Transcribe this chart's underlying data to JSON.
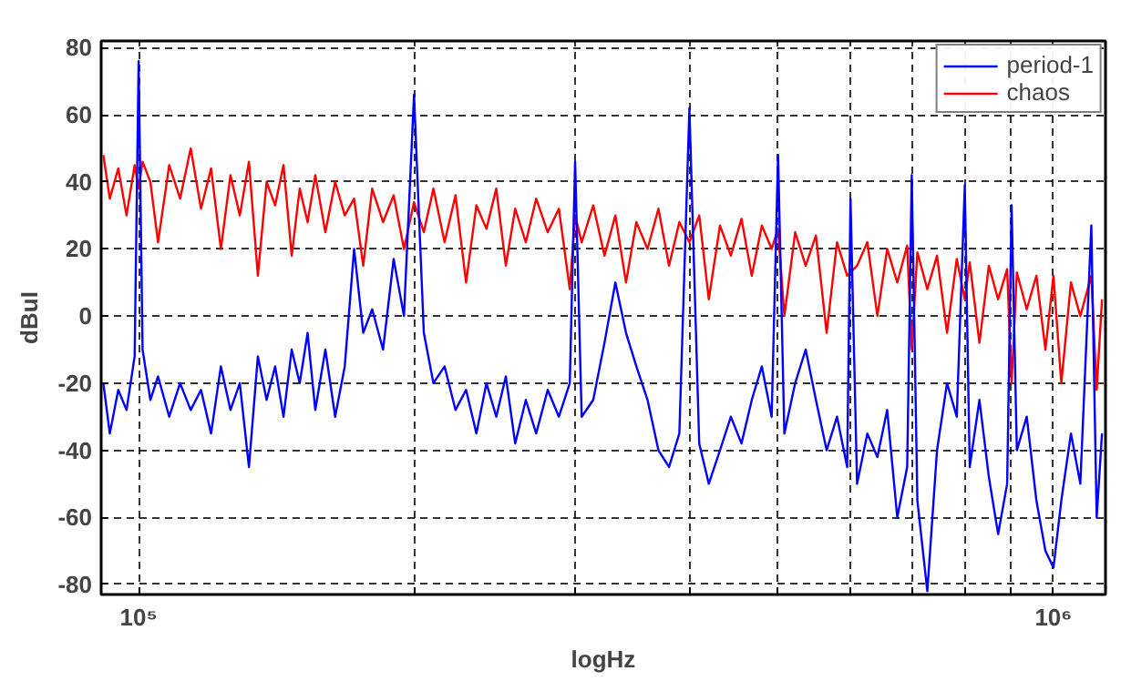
{
  "chart_data": {
    "type": "line",
    "xlabel": "logHz",
    "ylabel": "dBuI",
    "log": "x",
    "grid": true,
    "legend": "top right",
    "line_style": "solid",
    "marker": "none",
    "xlim": [
      91000,
      1140000
    ],
    "ylim": [
      -83,
      82
    ],
    "xticks": [
      {
        "value": 100000,
        "label": "10⁵"
      },
      {
        "value": 200000,
        "label": null
      },
      {
        "value": 300000,
        "label": null
      },
      {
        "value": 400000,
        "label": null
      },
      {
        "value": 500000,
        "label": null
      },
      {
        "value": 600000,
        "label": null
      },
      {
        "value": 700000,
        "label": null
      },
      {
        "value": 800000,
        "label": null
      },
      {
        "value": 900000,
        "label": null
      },
      {
        "value": 1000000,
        "label": "10⁶"
      }
    ],
    "yticks": [
      -80,
      -60,
      -40,
      -20,
      0,
      20,
      40,
      60,
      80
    ],
    "x": [
      91500,
      93000,
      95000,
      97000,
      99000,
      100000,
      101000,
      103000,
      105000,
      108000,
      111000,
      114000,
      117000,
      120000,
      123000,
      126000,
      129000,
      132000,
      135000,
      138000,
      141000,
      144000,
      147000,
      150000,
      153000,
      156000,
      160000,
      164000,
      168000,
      172000,
      176000,
      180000,
      185000,
      190000,
      195000,
      200000,
      205000,
      210000,
      216000,
      222000,
      228000,
      234000,
      240000,
      246000,
      252000,
      258000,
      265000,
      272000,
      280000,
      288000,
      296000,
      300000,
      305000,
      314000,
      323000,
      332000,
      341000,
      350000,
      360000,
      370000,
      380000,
      390000,
      400000,
      410000,
      420000,
      432000,
      444000,
      456000,
      468000,
      480000,
      492000,
      500000,
      508000,
      522000,
      536000,
      550000,
      565000,
      580000,
      595000,
      600000,
      610000,
      626000,
      642000,
      658000,
      675000,
      692000,
      700000,
      710000,
      728000,
      746000,
      765000,
      784000,
      800000,
      810000,
      830000,
      850000,
      870000,
      890000,
      900000,
      912000,
      935000,
      958000,
      980000,
      1000000,
      1020000,
      1045000,
      1070000,
      1100000,
      1115000,
      1130000
    ],
    "series": [
      {
        "name": "period-1",
        "color": "#0000ff",
        "values": [
          -20,
          -35,
          -22,
          -28,
          -12,
          76,
          -10,
          -25,
          -18,
          -30,
          -20,
          -28,
          -22,
          -35,
          -15,
          -28,
          -20,
          -45,
          -12,
          -25,
          -15,
          -30,
          -10,
          -20,
          -5,
          -28,
          -10,
          -30,
          -15,
          20,
          -5,
          2,
          -10,
          17,
          0,
          66,
          -5,
          -20,
          -15,
          -28,
          -22,
          -35,
          -20,
          -30,
          -18,
          -38,
          -25,
          -35,
          -22,
          -30,
          -20,
          46,
          -30,
          -25,
          -8,
          10,
          -5,
          -15,
          -25,
          -40,
          -45,
          -35,
          62,
          -38,
          -50,
          -40,
          -30,
          -38,
          -25,
          -15,
          -30,
          48,
          -35,
          -20,
          -10,
          -25,
          -40,
          -30,
          -45,
          35,
          -50,
          -35,
          -42,
          -28,
          -60,
          -45,
          42,
          -55,
          -82,
          -40,
          -20,
          -30,
          39,
          -45,
          -25,
          -48,
          -65,
          -50,
          33,
          -40,
          -30,
          -55,
          -70,
          -75,
          -55,
          -35,
          -50,
          27,
          -60,
          -35
        ]
      },
      {
        "name": "chaos",
        "color": "#ff0000",
        "x": [
          91500,
          93000,
          95000,
          97000,
          99000,
          100000,
          101000,
          103000,
          105000,
          108000,
          111000,
          114000,
          117000,
          120000,
          123000,
          126000,
          129000,
          132000,
          135000,
          138000,
          141000,
          144000,
          147000,
          150000,
          153000,
          156000,
          160000,
          164000,
          168000,
          172000,
          176000,
          180000,
          185000,
          190000,
          195000,
          200000,
          205000,
          210000,
          216000,
          222000,
          228000,
          234000,
          240000,
          246000,
          252000,
          258000,
          265000,
          272000,
          280000,
          288000,
          296000,
          300000,
          305000,
          314000,
          323000,
          332000,
          341000,
          350000,
          360000,
          370000,
          380000,
          390000,
          400000,
          410000,
          420000,
          432000,
          444000,
          456000,
          468000,
          480000,
          492000,
          500000,
          508000,
          522000,
          536000,
          550000,
          565000,
          580000,
          595000,
          610000,
          626000,
          642000,
          658000,
          675000,
          692000,
          700000,
          710000,
          728000,
          746000,
          765000,
          784000,
          800000,
          810000,
          830000,
          850000,
          870000,
          890000,
          900000,
          912000,
          935000,
          958000,
          980000,
          1000000,
          1020000,
          1045000,
          1070000,
          1100000,
          1115000,
          1130000
        ],
        "values": [
          48,
          35,
          44,
          30,
          45,
          38,
          46,
          40,
          22,
          45,
          35,
          50,
          32,
          44,
          20,
          42,
          30,
          46,
          12,
          40,
          33,
          45,
          18,
          38,
          28,
          42,
          25,
          40,
          30,
          35,
          15,
          38,
          28,
          36,
          20,
          34,
          25,
          38,
          22,
          36,
          10,
          33,
          26,
          38,
          15,
          32,
          22,
          35,
          25,
          32,
          8,
          30,
          22,
          33,
          18,
          30,
          10,
          28,
          20,
          32,
          15,
          28,
          22,
          30,
          5,
          27,
          18,
          29,
          12,
          27,
          20,
          26,
          0,
          25,
          15,
          24,
          -5,
          22,
          12,
          15,
          22,
          0,
          20,
          10,
          21,
          -10,
          19,
          8,
          18,
          -5,
          17,
          5,
          16,
          -8,
          15,
          5,
          14,
          -20,
          13,
          2,
          12,
          -10,
          12,
          -20,
          10,
          0,
          12,
          -22,
          5
        ]
      }
    ]
  }
}
